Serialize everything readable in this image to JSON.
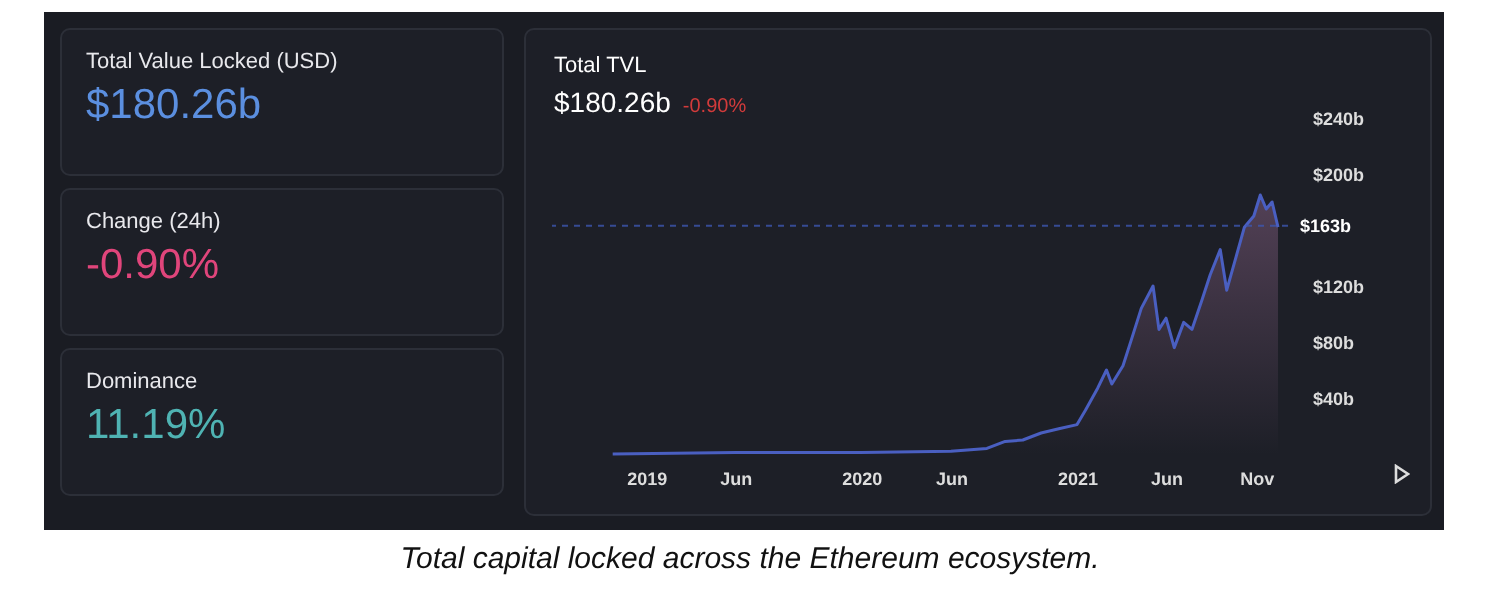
{
  "chart_data": [
    {
      "type": "other",
      "annotations": [
        "Total Value Locked (USD)",
        "$180.26b",
        "Change (24h)",
        "-0.90%",
        "Dominance",
        "11.19%"
      ]
    },
    {
      "type": "area",
      "title": "Total TVL",
      "subtitle": "$180.26b",
      "annotations": [
        "-0.90%",
        "Total capital locked across the Ethereum ecosystem."
      ],
      "x": [
        "2018-11-05",
        "2019-06-01",
        "2020-01-01",
        "2020-06-01",
        "2020-08-01",
        "2020-09-01",
        "2020-10-01",
        "2020-11-01",
        "2020-12-01",
        "2021-01-01",
        "2021-01-15",
        "2021-02-05",
        "2021-02-20",
        "2021-03-01",
        "2021-03-20",
        "2021-04-05",
        "2021-04-20",
        "2021-05-10",
        "2021-05-20",
        "2021-06-01",
        "2021-06-15",
        "2021-07-01",
        "2021-07-15",
        "2021-08-01",
        "2021-08-15",
        "2021-09-01",
        "2021-09-12",
        "2021-09-28",
        "2021-10-12",
        "2021-10-28",
        "2021-11-08",
        "2021-11-18",
        "2021-11-28",
        "2021-12-08"
      ],
      "series": [
        {
          "color": "#4a5fc1",
          "values": [
            0,
            1,
            1,
            2,
            4,
            9,
            10,
            15,
            18,
            21,
            31,
            47,
            60,
            50,
            63,
            84,
            104,
            120,
            89,
            97,
            76,
            94,
            89,
            110,
            128,
            146,
            117,
            141,
            162,
            170,
            185,
            175,
            180,
            162
          ]
        }
      ],
      "xlim": [
        "2018-07-25",
        "2021-12-25"
      ],
      "xticks": [
        {
          "value": "2019-01-01",
          "label": "2019"
        },
        {
          "value": "2019-06-01",
          "label": "Jun"
        },
        {
          "value": "2020-01-01",
          "label": "2020"
        },
        {
          "value": "2020-06-01",
          "label": "Jun"
        },
        {
          "value": "2021-01-01",
          "label": "2021"
        },
        {
          "value": "2021-06-01",
          "label": "Jun"
        },
        {
          "value": "2021-11-01",
          "label": "Nov"
        }
      ],
      "ylim": [
        0,
        240
      ],
      "yticks": [
        {
          "value": 40,
          "label": "$40b"
        },
        {
          "value": 80,
          "label": "$80b"
        },
        {
          "value": 120,
          "label": "$120b"
        },
        {
          "value": 200,
          "label": "$200b"
        },
        {
          "value": 240,
          "label": "$240b"
        }
      ],
      "ref_lines": [
        {
          "axis": "y",
          "value": 163,
          "label": "$163b",
          "color": "#3d56b0",
          "line_style": "dashed"
        }
      ],
      "grid": false
    }
  ]
}
